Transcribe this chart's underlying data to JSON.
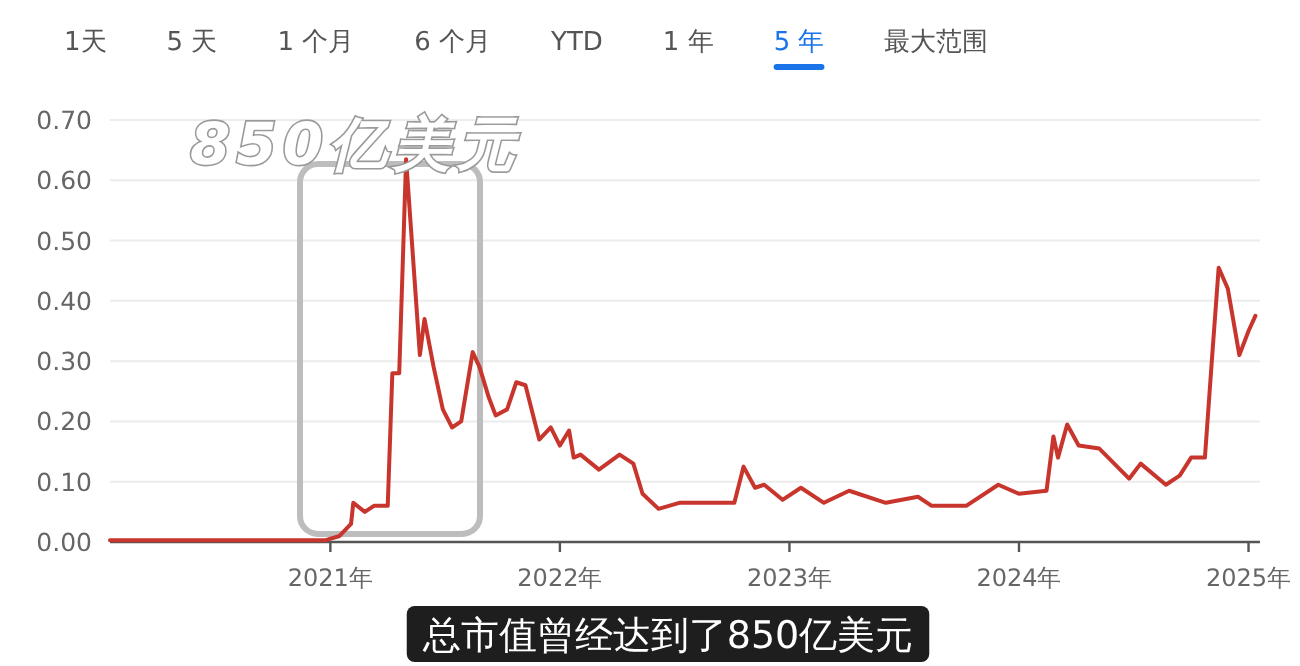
{
  "chart_data": {
    "type": "line",
    "annotations": [
      "1天",
      "5 天",
      "1 个月",
      "6 个月",
      "YTD",
      "1 年",
      "5 年",
      "最大范围",
      "850亿美元",
      "总市值曾经达到了850亿美元"
    ],
    "xlim": [
      2020.04,
      2025.05
    ],
    "xticks": [
      {
        "value": 2021,
        "label": "2021年"
      },
      {
        "value": 2022,
        "label": "2022年"
      },
      {
        "value": 2023,
        "label": "2023年"
      },
      {
        "value": 2024,
        "label": "2024年"
      },
      {
        "value": 2025,
        "label": "2025年"
      }
    ],
    "ylim": [
      0,
      0.7
    ],
    "yticks": [
      {
        "value": 0,
        "label": "0.00"
      },
      {
        "value": 0.1,
        "label": "0.10"
      },
      {
        "value": 0.2,
        "label": "0.20"
      },
      {
        "value": 0.3,
        "label": "0.30"
      },
      {
        "value": 0.4,
        "label": "0.40"
      },
      {
        "value": 0.5,
        "label": "0.50"
      },
      {
        "value": 0.6,
        "label": "0.60"
      },
      {
        "value": 0.7,
        "label": "0.70"
      }
    ],
    "grid": "y",
    "series": [
      {
        "color": "#c8352d",
        "x": [
          2020.04,
          2020.5,
          2020.98,
          2021.04,
          2021.09,
          2021.1,
          2021.15,
          2021.19,
          2021.25,
          2021.27,
          2021.3,
          2021.33,
          2021.39,
          2021.41,
          2021.45,
          2021.49,
          2021.53,
          2021.57,
          2021.62,
          2021.65,
          2021.69,
          2021.72,
          2021.77,
          2021.81,
          2021.85,
          2021.91,
          2021.96,
          2022.0,
          2022.04,
          2022.06,
          2022.09,
          2022.17,
          2022.26,
          2022.32,
          2022.36,
          2022.43,
          2022.52,
          2022.6,
          2022.76,
          2022.8,
          2022.85,
          2022.89,
          2022.97,
          2023.05,
          2023.15,
          2023.26,
          2023.42,
          2023.56,
          2023.62,
          2023.77,
          2023.91,
          2024.0,
          2024.12,
          2024.15,
          2024.17,
          2024.21,
          2024.26,
          2024.35,
          2024.48,
          2024.53,
          2024.64,
          2024.7,
          2024.75,
          2024.81,
          2024.84,
          2024.87,
          2024.91,
          2024.96,
          2025.0,
          2025.03
        ],
        "values": [
          0.003,
          0.003,
          0.003,
          0.01,
          0.03,
          0.065,
          0.05,
          0.06,
          0.06,
          0.28,
          0.28,
          0.635,
          0.31,
          0.37,
          0.29,
          0.22,
          0.19,
          0.2,
          0.315,
          0.29,
          0.24,
          0.21,
          0.22,
          0.265,
          0.26,
          0.17,
          0.19,
          0.16,
          0.185,
          0.14,
          0.145,
          0.12,
          0.145,
          0.13,
          0.08,
          0.055,
          0.065,
          0.065,
          0.065,
          0.125,
          0.09,
          0.095,
          0.07,
          0.09,
          0.065,
          0.085,
          0.065,
          0.075,
          0.06,
          0.06,
          0.095,
          0.08,
          0.085,
          0.175,
          0.14,
          0.195,
          0.16,
          0.155,
          0.105,
          0.13,
          0.095,
          0.11,
          0.14,
          0.14,
          0.3,
          0.455,
          0.42,
          0.31,
          0.35,
          0.375
        ]
      }
    ]
  }
}
